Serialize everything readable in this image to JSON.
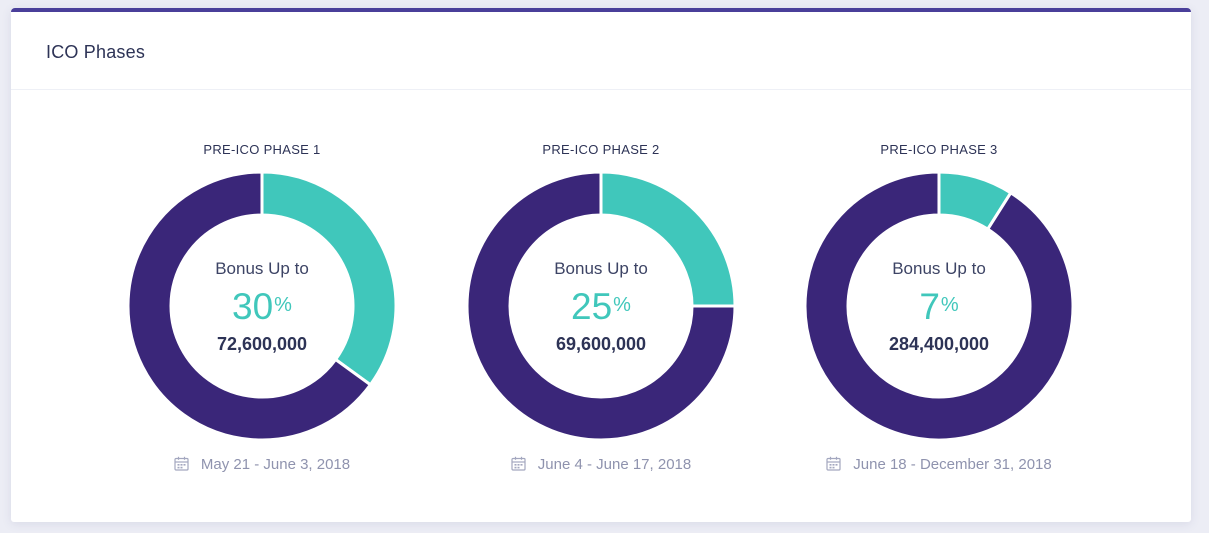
{
  "card": {
    "title": "ICO Phases"
  },
  "colors": {
    "primary": "#3a2679",
    "accent": "#40c7bb",
    "border_top": "#4a3f9a"
  },
  "phases": [
    {
      "label": "PRE-ICO PHASE 1",
      "bonus_label": "Bonus Up to",
      "bonus_value": "30",
      "bonus_unit": "%",
      "amount": "72,600,000",
      "date": "May 21 - June 3, 2018",
      "fraction": 0.35
    },
    {
      "label": "PRE-ICO PHASE 2",
      "bonus_label": "Bonus Up to",
      "bonus_value": "25",
      "bonus_unit": "%",
      "amount": "69,600,000",
      "date": "June 4 - June 17, 2018",
      "fraction": 0.25
    },
    {
      "label": "PRE-ICO PHASE 3",
      "bonus_label": "Bonus Up to",
      "bonus_value": "7",
      "bonus_unit": "%",
      "amount": "284,400,000",
      "date": "June 18 - December 31, 2018",
      "fraction": 0.09
    }
  ],
  "icons": {
    "date": "calendar-icon"
  }
}
